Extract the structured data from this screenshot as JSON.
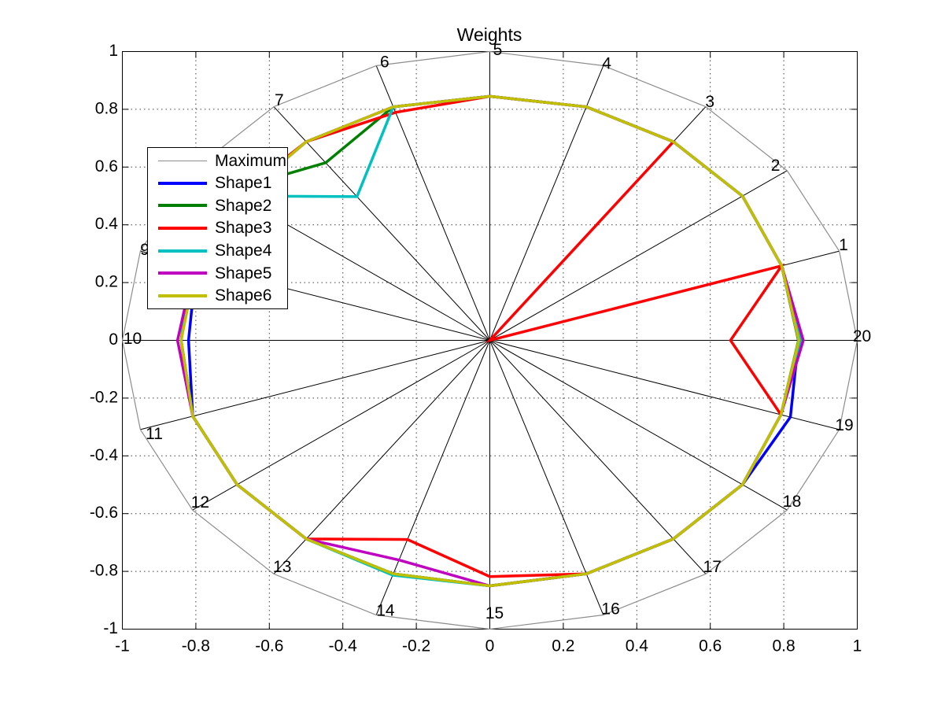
{
  "title": "Weights",
  "axes": {
    "x_tick_labels": [
      "-1",
      "-0.8",
      "-0.6",
      "-0.4",
      "-0.2",
      "0",
      "0.2",
      "0.4",
      "0.6",
      "0.8",
      "1"
    ],
    "y_tick_labels": [
      "-1",
      "-0.8",
      "-0.6",
      "-0.4",
      "-0.2",
      "0",
      "0.2",
      "0.4",
      "0.6",
      "0.8",
      "1"
    ],
    "x_tick_values": [
      -1,
      -0.8,
      -0.6,
      -0.4,
      -0.2,
      0,
      0.2,
      0.4,
      0.6,
      0.8,
      1
    ],
    "y_tick_values": [
      -1,
      -0.8,
      -0.6,
      -0.4,
      -0.2,
      0,
      0.2,
      0.4,
      0.6,
      0.8,
      1
    ],
    "xlim": [
      -1,
      1
    ],
    "ylim": [
      -1,
      1
    ],
    "grid": "dotted"
  },
  "chart_data": {
    "type": "radar",
    "spoke_count": 20,
    "spoke_labels": [
      "1",
      "2",
      "3",
      "4",
      "5",
      "6",
      "7",
      "8",
      "9",
      "10",
      "11",
      "12",
      "13",
      "14",
      "15",
      "16",
      "17",
      "18",
      "19",
      "20"
    ],
    "spoke_angle_step_deg": 18,
    "r_range": [
      0,
      1
    ],
    "title": "Weights",
    "legend_position": "upper-left",
    "series": [
      {
        "name": "Maximum",
        "color": "#8c8c8c",
        "width": 1.2,
        "values": [
          1,
          1,
          1,
          1,
          1,
          1,
          1,
          1,
          1,
          1,
          1,
          1,
          1,
          1,
          1,
          1,
          1,
          1,
          1,
          1
        ]
      },
      {
        "name": "Shape1",
        "color": "#0000ff",
        "width": 3.5,
        "values": [
          0.835,
          0.85,
          0.85,
          0.85,
          0.845,
          0.85,
          0.85,
          0.84,
          0.84,
          0.82,
          0.85,
          0.85,
          0.85,
          0.85,
          0.85,
          0.85,
          0.85,
          0.85,
          0.86,
          0.84
        ]
      },
      {
        "name": "Shape2",
        "color": "#008000",
        "width": 3.5,
        "values": [
          0.835,
          0.85,
          0.85,
          0.85,
          0.845,
          0.85,
          0.76,
          0.88,
          0.85,
          0.84,
          0.85,
          0.85,
          0.85,
          0.85,
          0.85,
          0.85,
          0.85,
          0.85,
          0.833,
          0.84
        ]
      },
      {
        "name": "Shape3",
        "color": "#ff0000",
        "width": 3.5,
        "values": [
          0.835,
          0,
          0.85,
          0.85,
          0.845,
          0.83,
          0.85,
          0.85,
          0.85,
          0.84,
          0.85,
          0.85,
          0.85,
          0.725,
          0.818,
          0.85,
          0.85,
          0.85,
          0.833,
          0.655
        ]
      },
      {
        "name": "Shape4",
        "color": "#00c0c0",
        "width": 3.5,
        "values": [
          0.835,
          0.85,
          0.85,
          0.85,
          0.845,
          0.85,
          0.615,
          0.85,
          0.85,
          0.84,
          0.85,
          0.85,
          0.85,
          0.855,
          0.85,
          0.85,
          0.85,
          0.85,
          0.833,
          0.846
        ]
      },
      {
        "name": "Shape5",
        "color": "#c000c0",
        "width": 3.5,
        "values": [
          0.835,
          0.85,
          0.85,
          0.85,
          0.845,
          0.85,
          0.85,
          0.84,
          0.845,
          0.85,
          0.85,
          0.85,
          0.85,
          0.8,
          0.85,
          0.85,
          0.85,
          0.85,
          0.833,
          0.853
        ]
      },
      {
        "name": "Shape6",
        "color": "#c0c000",
        "width": 3.5,
        "values": [
          0.835,
          0.85,
          0.85,
          0.85,
          0.845,
          0.85,
          0.85,
          0.84,
          0.84,
          0.84,
          0.85,
          0.85,
          0.85,
          0.85,
          0.85,
          0.85,
          0.85,
          0.85,
          0.833,
          0.841
        ]
      }
    ]
  },
  "legend": {
    "entries": [
      "Maximum",
      "Shape1",
      "Shape2",
      "Shape3",
      "Shape4",
      "Shape5",
      "Shape6"
    ]
  }
}
